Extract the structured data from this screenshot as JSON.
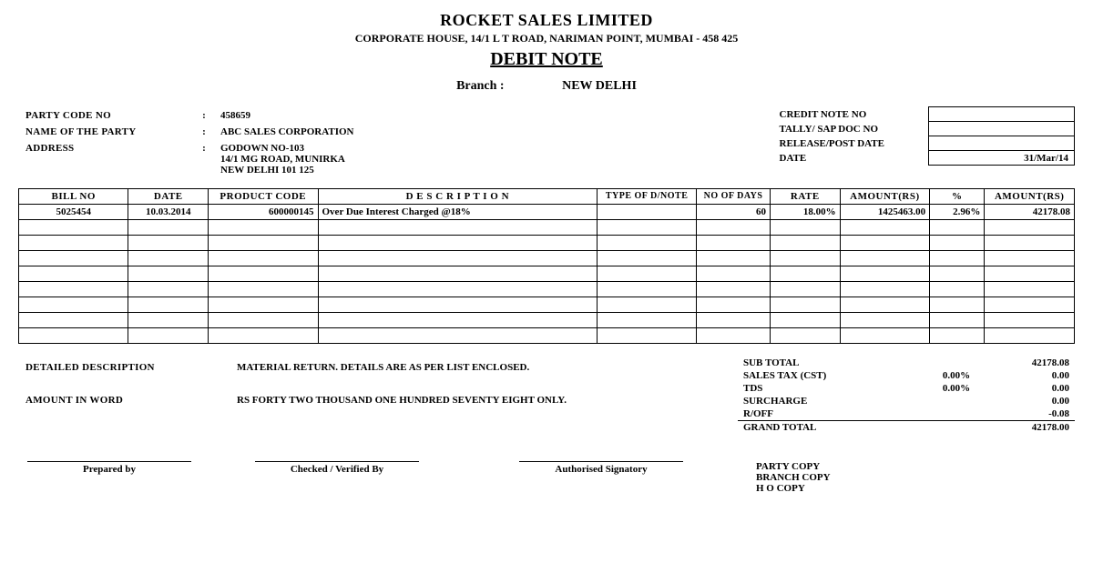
{
  "header": {
    "company": "ROCKET SALES LIMITED",
    "address": "CORPORATE HOUSE, 14/1 L T ROAD, NARIMAN POINT, MUMBAI - 458 425",
    "doc_title": "DEBIT NOTE",
    "branch_label": "Branch  :",
    "branch_value": "NEW DELHI"
  },
  "party": {
    "code_label": "PARTY CODE NO",
    "code": "458659",
    "name_label": "NAME OF THE PARTY",
    "name": "ABC SALES CORPORATION",
    "address_label": "ADDRESS",
    "address_l1": "GODOWN NO-103",
    "address_l2": "14/1 MG ROAD, MUNIRKA",
    "address_l3": "NEW DELHI 101 125"
  },
  "docinfo": {
    "credit_note_label": "CREDIT NOTE NO",
    "credit_note": "",
    "tally_label": "TALLY/ SAP DOC NO",
    "tally": "",
    "release_label": "RELEASE/POST DATE",
    "release": "",
    "date_label": "DATE",
    "date": "31/Mar/14"
  },
  "items": {
    "columns": {
      "bill": "BILL NO",
      "date": "DATE",
      "prod": "PRODUCT CODE",
      "desc": "D E S C R I P T I O N",
      "type": "TYPE OF D/NOTE",
      "days": "NO OF DAYS",
      "rate": "RATE",
      "amt1": "AMOUNT(RS)",
      "pct": "%",
      "amt2": "AMOUNT(RS)"
    },
    "rows": [
      {
        "bill": "5025454",
        "date": "10.03.2014",
        "prod": "600000145",
        "desc": "Over Due Interest Charged @18%",
        "type": "",
        "days": "60",
        "rate": "18.00%",
        "amt1": "1425463.00",
        "pct": "2.96%",
        "amt2": "42178.08"
      }
    ],
    "blank_rows": 8
  },
  "footer": {
    "detail_label": "DETAILED DESCRIPTION",
    "detail_value": "MATERIAL RETURN. DETAILS ARE AS PER LIST ENCLOSED.",
    "amount_word_label": "AMOUNT IN WORD",
    "amount_word_value": "RS FORTY TWO THOUSAND ONE HUNDRED SEVENTY EIGHT ONLY."
  },
  "totals": {
    "subtotal_label": "SUB TOTAL",
    "subtotal": "42178.08",
    "cst_label": "SALES TAX (CST)",
    "cst_pct": "0.00%",
    "cst": "0.00",
    "tds_label": "TDS",
    "tds_pct": "0.00%",
    "tds": "0.00",
    "surcharge_label": "SURCHARGE",
    "surcharge": "0.00",
    "roff_label": "R/OFF",
    "roff": "-0.08",
    "grand_label": "GRAND TOTAL",
    "grand": "42178.00"
  },
  "signatures": {
    "prepared": "Prepared by",
    "checked": "Checked  / Verified By",
    "auth": "Authorised Signatory",
    "copy1": "PARTY COPY",
    "copy2": "BRANCH COPY",
    "copy3": "H O COPY"
  }
}
